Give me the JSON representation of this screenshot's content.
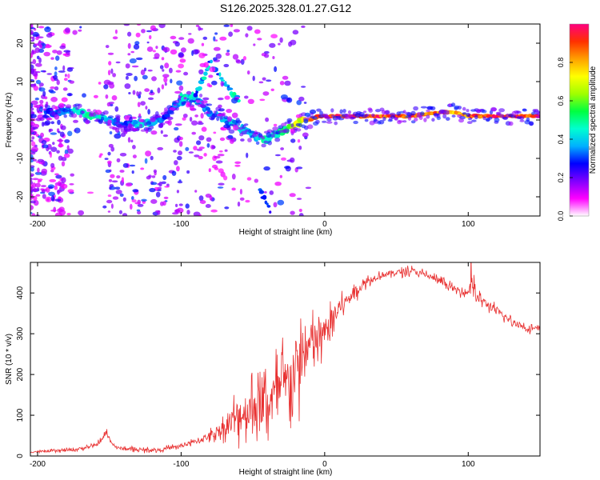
{
  "title": "S126.2025.328.01.27.G12",
  "chart_data": [
    {
      "type": "heatmap",
      "name": "spectrogram",
      "xlabel": "Height of straight line (km)",
      "ylabel": "Frequency (Hz)",
      "xlim": [
        -205,
        150
      ],
      "ylim": [
        -25,
        25
      ],
      "xticks": [
        -200,
        -100,
        0,
        100
      ],
      "yticks": [
        -20,
        -10,
        0,
        10,
        20
      ],
      "colorbar": {
        "label": "Normalized spectral amplitude",
        "range": [
          0,
          1
        ],
        "ticks": [
          "0.0",
          "0.2",
          "0.4",
          "0.6",
          "0.8"
        ],
        "colors": [
          "#ffffff",
          "#ff00ff",
          "#7f00ff",
          "#0000ff",
          "#00b0ff",
          "#00ffd0",
          "#00ff40",
          "#a0ff00",
          "#ffff00",
          "#ffa000",
          "#ff3000",
          "#ff0080"
        ]
      },
      "ridge": {
        "x": [
          -190,
          -175,
          -160,
          -150,
          -140,
          -125,
          -110,
          -100,
          -90,
          -80,
          -70,
          -60,
          -50,
          -40,
          -35,
          -30,
          -20,
          -10,
          -5,
          0,
          20,
          40,
          60,
          80,
          90,
          100,
          120,
          150
        ],
        "freq": [
          2,
          2.5,
          1,
          0,
          -1,
          -1,
          1,
          5,
          6,
          2,
          0,
          -2,
          -4,
          -5,
          -4,
          -3,
          -1,
          0,
          1,
          1,
          1,
          1,
          1,
          2,
          2,
          1,
          1,
          1
        ],
        "amplitude": [
          0.3,
          0.45,
          0.5,
          0.4,
          0.3,
          0.45,
          0.3,
          0.4,
          0.45,
          0.35,
          0.4,
          0.45,
          0.4,
          0.5,
          0.45,
          0.5,
          0.7,
          0.85,
          0.9,
          0.95,
          0.95,
          0.95,
          0.95,
          0.9,
          0.85,
          0.9,
          0.95,
          0.95
        ]
      },
      "upper_branch": {
        "x": [
          -100,
          -90,
          -80,
          -70,
          -60
        ],
        "freq": [
          6,
          6,
          15,
          10,
          5
        ]
      },
      "lower_branch": {
        "x": [
          -45,
          -40,
          -38
        ],
        "freq": [
          -18,
          -22,
          -24
        ]
      }
    },
    {
      "type": "line",
      "name": "snr",
      "xlabel": "Height of straight line (km)",
      "ylabel": "SNR (10 * v/v)",
      "xlim": [
        -205,
        150
      ],
      "ylim": [
        0,
        475
      ],
      "xticks": [
        -200,
        -100,
        0,
        100
      ],
      "yticks": [
        0,
        100,
        200,
        300,
        400
      ],
      "color": "#e83030",
      "x": [
        -205,
        -190,
        -175,
        -160,
        -155,
        -152,
        -150,
        -145,
        -130,
        -115,
        -100,
        -90,
        -80,
        -70,
        -60,
        -50,
        -40,
        -30,
        -20,
        -10,
        0,
        10,
        20,
        30,
        40,
        50,
        60,
        70,
        80,
        90,
        100,
        102,
        105,
        110,
        120,
        130,
        140,
        150
      ],
      "values": [
        10,
        12,
        15,
        25,
        40,
        60,
        40,
        20,
        15,
        15,
        25,
        35,
        50,
        70,
        100,
        120,
        130,
        160,
        210,
        270,
        300,
        360,
        400,
        430,
        445,
        450,
        455,
        445,
        430,
        410,
        400,
        450,
        390,
        380,
        355,
        330,
        315,
        310
      ],
      "noise": [
        5,
        5,
        6,
        8,
        10,
        12,
        10,
        8,
        8,
        8,
        10,
        12,
        20,
        40,
        90,
        110,
        120,
        140,
        160,
        120,
        80,
        40,
        30,
        20,
        15,
        15,
        15,
        15,
        15,
        15,
        20,
        80,
        25,
        20,
        20,
        15,
        15,
        15
      ]
    }
  ]
}
